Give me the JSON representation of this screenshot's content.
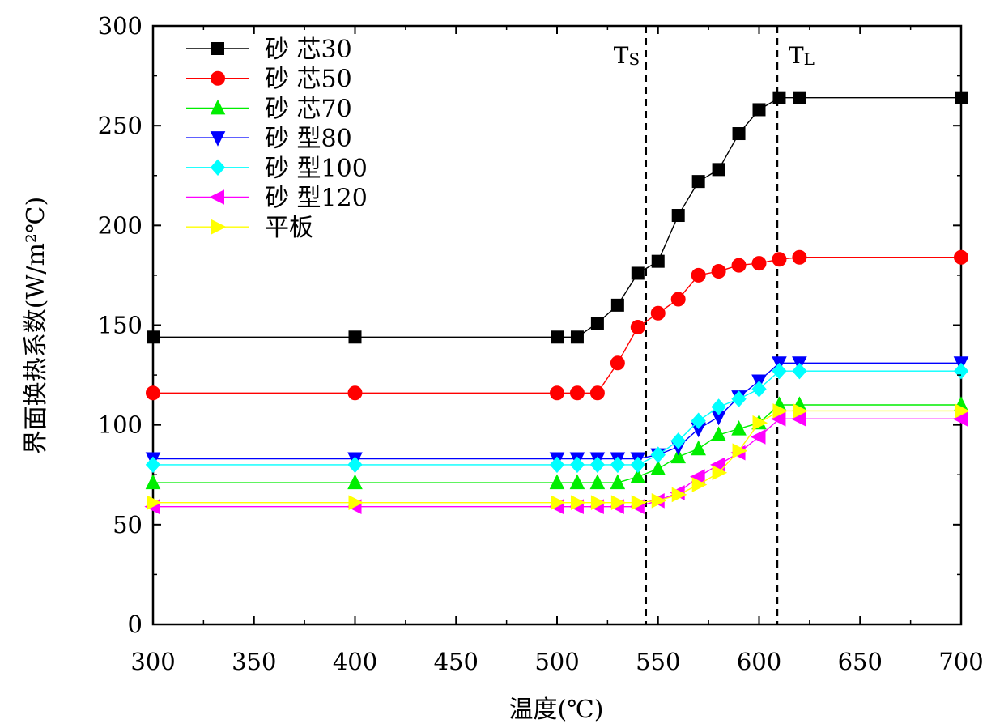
{
  "chart_data": {
    "type": "line",
    "title": "",
    "xlabel": "温度(℃)",
    "ylabel": "界面换热系数(W/m²℃)",
    "xlim": [
      300,
      700
    ],
    "ylim": [
      0,
      300
    ],
    "xticks": [
      300,
      350,
      400,
      450,
      500,
      550,
      600,
      650,
      700
    ],
    "yticks": [
      0,
      50,
      100,
      150,
      200,
      250,
      300
    ],
    "grid": false,
    "legend_position": "top-left",
    "reference_lines": [
      {
        "label": "Ts",
        "main": "T",
        "sub": "S",
        "x": 544
      },
      {
        "label": "TL",
        "main": "T",
        "sub": "L",
        "x": 609
      }
    ],
    "series": [
      {
        "name": "砂 芯30",
        "color": "#000000",
        "marker": "square",
        "x": [
          300,
          400,
          500,
          510,
          520,
          530,
          540,
          550,
          560,
          570,
          580,
          590,
          600,
          610,
          620,
          700
        ],
        "y": [
          144,
          144,
          144,
          144,
          151,
          160,
          176,
          182,
          205,
          222,
          228,
          246,
          258,
          264,
          264,
          264
        ]
      },
      {
        "name": "砂 芯50",
        "color": "#ff0000",
        "marker": "circle",
        "x": [
          300,
          400,
          500,
          510,
          520,
          530,
          540,
          550,
          560,
          570,
          580,
          590,
          600,
          610,
          620,
          700
        ],
        "y": [
          116,
          116,
          116,
          116,
          116,
          131,
          149,
          156,
          163,
          175,
          177,
          180,
          181,
          183,
          184,
          184
        ]
      },
      {
        "name": "砂 芯70",
        "color": "#00ee00",
        "marker": "triangle-up",
        "x": [
          300,
          400,
          500,
          510,
          520,
          530,
          540,
          550,
          560,
          570,
          580,
          590,
          600,
          610,
          620,
          700
        ],
        "y": [
          71,
          71,
          71,
          71,
          71,
          71,
          74,
          78,
          84,
          88,
          95,
          98,
          101,
          110,
          110,
          110
        ]
      },
      {
        "name": "砂 型80",
        "color": "#0000ff",
        "marker": "triangle-down",
        "x": [
          300,
          400,
          500,
          510,
          520,
          530,
          540,
          550,
          560,
          570,
          580,
          590,
          600,
          610,
          620,
          700
        ],
        "y": [
          83,
          83,
          83,
          83,
          83,
          83,
          83,
          85,
          89,
          98,
          104,
          114,
          122,
          131,
          131,
          131
        ]
      },
      {
        "name": "砂 型100",
        "color": "#00ffff",
        "marker": "diamond",
        "x": [
          300,
          400,
          500,
          510,
          520,
          530,
          540,
          550,
          560,
          570,
          580,
          590,
          600,
          610,
          620,
          700
        ],
        "y": [
          80,
          80,
          80,
          80,
          80,
          80,
          80,
          85,
          92,
          102,
          109,
          113,
          118,
          127,
          127,
          127
        ]
      },
      {
        "name": "砂 型120",
        "color": "#ff00ff",
        "marker": "triangle-left",
        "x": [
          300,
          400,
          500,
          510,
          520,
          530,
          540,
          550,
          560,
          570,
          580,
          590,
          600,
          610,
          620,
          700
        ],
        "y": [
          59,
          59,
          59,
          59,
          59,
          59,
          59,
          62,
          66,
          74,
          80,
          86,
          94,
          103,
          103,
          103
        ]
      },
      {
        "name": "平板",
        "color": "#ffff00",
        "marker": "triangle-right",
        "x": [
          300,
          400,
          500,
          510,
          520,
          530,
          540,
          550,
          560,
          570,
          580,
          590,
          600,
          610,
          620,
          700
        ],
        "y": [
          61,
          61,
          61,
          61,
          61,
          61,
          61,
          62,
          65,
          70,
          76,
          87,
          101,
          107,
          107,
          107
        ]
      }
    ]
  }
}
